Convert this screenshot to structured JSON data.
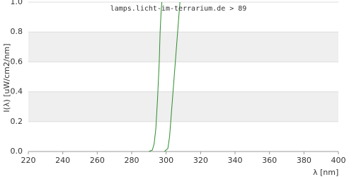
{
  "chart_data": {
    "type": "line",
    "title": "lamps.licht-im-terrarium.de > 89",
    "x_label": "λ [nm]",
    "y_label": "I(λ)  [uW/cm2/nm]",
    "series": [
      {
        "color": "#2e8b2e",
        "x": [
          290,
          292,
          293,
          294,
          295,
          296,
          296.5,
          297,
          297.5
        ],
        "values": [
          0,
          0.01,
          0.05,
          0.15,
          0.35,
          0.6,
          0.8,
          0.92,
          1.0
        ]
      },
      {
        "color": "#2e8b2e",
        "x": [
          299,
          301,
          302,
          303,
          304,
          305,
          306,
          307,
          308
        ],
        "values": [
          0,
          0.02,
          0.1,
          0.25,
          0.4,
          0.55,
          0.7,
          0.85,
          1.0
        ]
      }
    ],
    "xlim": [
      220,
      400
    ],
    "xticks": [
      220,
      240,
      260,
      280,
      300,
      320,
      340,
      360,
      380,
      400
    ],
    "ylim": [
      0,
      1
    ],
    "yticks": [
      {
        "value": 0,
        "label": "0.0"
      },
      0.2,
      0.4,
      0.6,
      0.8,
      {
        "value": 1,
        "label": "1.0"
      }
    ],
    "grid": true,
    "grid_bands": true
  }
}
